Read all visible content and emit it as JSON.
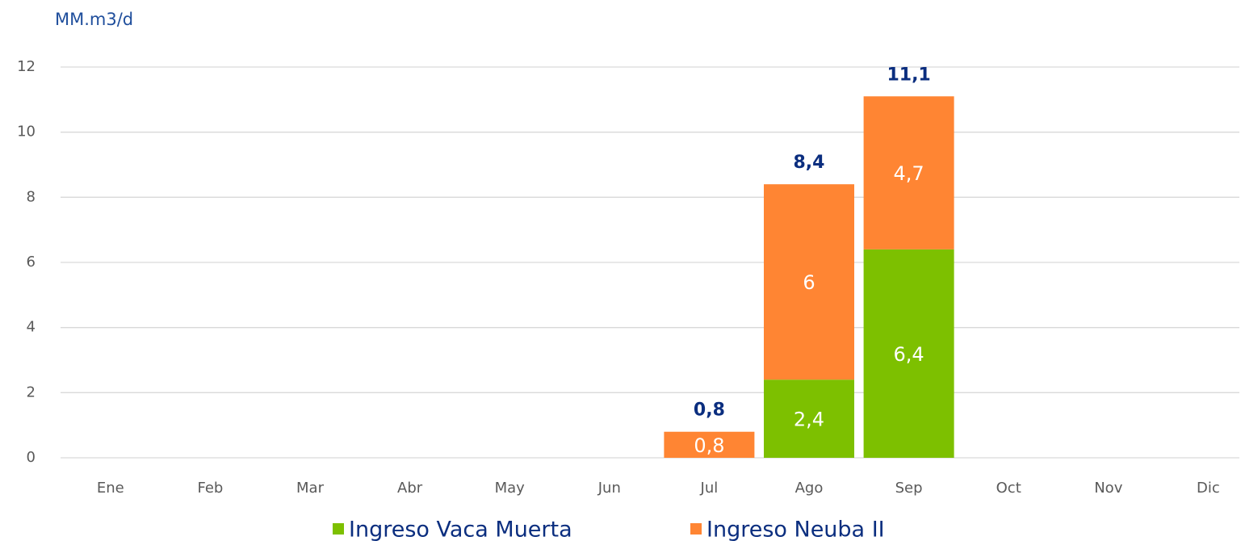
{
  "chart_data": {
    "type": "stacked_bar",
    "y_label": "MM.m3/d",
    "categories": [
      "Ene",
      "Feb",
      "Mar",
      "Abr",
      "May",
      "Jun",
      "Jul",
      "Ago",
      "Sep",
      "Oct",
      "Nov",
      "Dic"
    ],
    "series": [
      {
        "name": "Ingreso Vaca Muerta",
        "color": "#7dc000",
        "values": [
          null,
          null,
          null,
          null,
          null,
          null,
          null,
          2.4,
          6.4,
          null,
          null,
          null
        ],
        "value_labels": [
          null,
          null,
          null,
          null,
          null,
          null,
          null,
          "2,4",
          "6,4",
          null,
          null,
          null
        ]
      },
      {
        "name": "Ingreso Neuba II",
        "color": "#ff8533",
        "values": [
          null,
          null,
          null,
          null,
          null,
          null,
          0.8,
          6,
          4.7,
          null,
          null,
          null
        ],
        "value_labels": [
          null,
          null,
          null,
          null,
          null,
          null,
          "0,8",
          "6",
          "4,7",
          null,
          null,
          null
        ]
      }
    ],
    "totals": [
      null,
      null,
      null,
      null,
      null,
      null,
      0.8,
      8.4,
      11.1,
      null,
      null,
      null
    ],
    "totals_labels": [
      null,
      null,
      null,
      null,
      null,
      null,
      "0,8",
      "8,4",
      "11,1",
      null,
      null,
      null
    ],
    "ylim": [
      0,
      12
    ],
    "yticks": [
      0,
      2,
      4,
      6,
      8,
      10,
      12
    ],
    "grid": true,
    "legend": "bottom"
  }
}
